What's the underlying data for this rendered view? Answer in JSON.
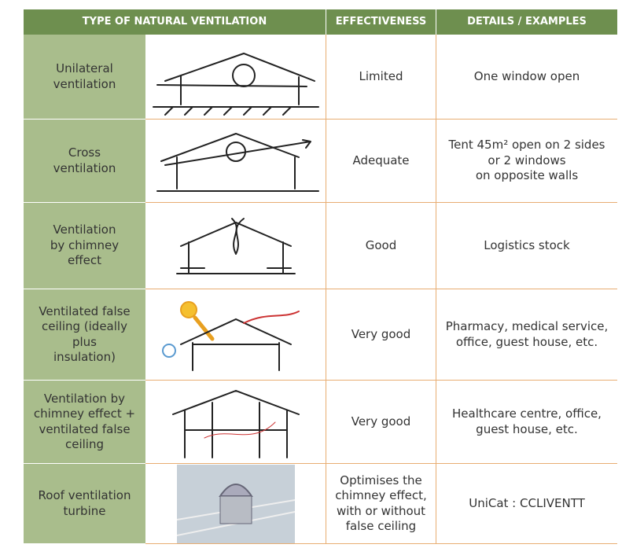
{
  "table": {
    "header": [
      "TYPE OF NATURAL VENTILATION",
      "EFFECTIVENESS",
      "DETAILS / EXAMPLES"
    ],
    "rows": [
      [
        "Unilateral\nventilation",
        "Limited",
        "One window open"
      ],
      [
        "Cross\nventilation",
        "Adequate",
        "Tent 45m² open on 2 sides\nor 2 windows\non opposite walls"
      ],
      [
        "Ventilation\nby chimney\neffect",
        "Good",
        "Logistics stock"
      ],
      [
        "Ventilated false\nceiling (ideally plus\ninsulation)",
        "Very good",
        "Pharmacy, medical service,\noffice, guest house, etc."
      ],
      [
        "Ventilation by\nchimney effect +\nventilated false\nceiling",
        "Very good",
        "Healthcare centre, office,\nguest house, etc."
      ],
      [
        "Roof ventilation\nturbine",
        "Optimises the\nchimney effect,\nwith or without\nfalse ceiling",
        "UniCat : CCLIVENTT"
      ]
    ]
  }
}
